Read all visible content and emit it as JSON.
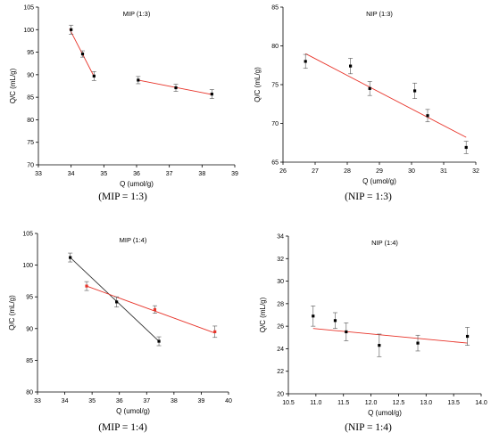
{
  "chart_data": [
    {
      "type": "scatter",
      "title": "MIP (1:3)",
      "caption": "(MIP = 1:3)",
      "xlabel": "Q (umol/g)",
      "ylabel": "Q/C (mL/g)",
      "xlim": [
        33,
        39
      ],
      "ylim": [
        70,
        105
      ],
      "xticks": [
        33,
        34,
        35,
        36,
        37,
        38,
        39
      ],
      "yticks": [
        70,
        75,
        80,
        85,
        90,
        95,
        100,
        105
      ],
      "grid": false,
      "series": [
        {
          "points": [
            [
              34.0,
              100.0
            ],
            [
              34.35,
              94.6
            ],
            [
              34.7,
              89.7
            ],
            [
              36.05,
              88.8
            ],
            [
              37.2,
              87.1
            ],
            [
              38.3,
              85.7
            ]
          ],
          "errors": [
            1.0,
            0.7,
            1.0,
            0.8,
            0.8,
            1.0
          ]
        }
      ],
      "fits": [
        {
          "color": "#e8342a",
          "from": [
            33.95,
            100.2
          ],
          "to": [
            34.7,
            89.6
          ]
        },
        {
          "color": "#e8342a",
          "from": [
            36.05,
            88.8
          ],
          "to": [
            38.3,
            85.6
          ]
        }
      ]
    },
    {
      "type": "scatter",
      "title": "NIP (1:3)",
      "caption": "(NIP = 1:3)",
      "xlabel": "Q (umol/g)",
      "ylabel": "Q/C (mL/g)",
      "xlim": [
        26,
        32
      ],
      "ylim": [
        65,
        85
      ],
      "xticks": [
        26,
        27,
        28,
        29,
        30,
        31,
        32
      ],
      "yticks": [
        65,
        70,
        75,
        80,
        85
      ],
      "grid": false,
      "series": [
        {
          "points": [
            [
              26.7,
              78.0
            ],
            [
              28.1,
              77.4
            ],
            [
              28.7,
              74.5
            ],
            [
              30.1,
              74.2
            ],
            [
              30.5,
              71.0
            ],
            [
              31.7,
              66.9
            ]
          ],
          "errors": [
            0.9,
            1.0,
            0.9,
            1.0,
            0.8,
            0.8
          ]
        }
      ],
      "fits": [
        {
          "color": "#e8342a",
          "from": [
            26.7,
            79.0
          ],
          "to": [
            31.7,
            68.2
          ]
        }
      ]
    },
    {
      "type": "scatter",
      "title": "MIP (1:4)",
      "caption": "(MIP = 1:4)",
      "xlabel": "Q (umol/g)",
      "ylabel": "Q/C (mL/g)",
      "xlim": [
        33,
        40
      ],
      "ylim": [
        80,
        105
      ],
      "xticks": [
        33,
        34,
        35,
        36,
        37,
        38,
        39,
        40
      ],
      "yticks": [
        80,
        85,
        90,
        95,
        100,
        105
      ],
      "grid": false,
      "series": [
        {
          "color": "#000000",
          "points": [
            [
              34.2,
              101.2
            ],
            [
              35.9,
              94.2
            ],
            [
              37.45,
              88.0
            ]
          ],
          "errors": [
            0.7,
            0.8,
            0.7
          ]
        },
        {
          "color": "#e8342a",
          "points": [
            [
              34.8,
              96.7
            ],
            [
              37.3,
              93.0
            ],
            [
              39.5,
              89.5
            ]
          ],
          "errors": [
            0.7,
            0.6,
            0.9
          ]
        }
      ],
      "fits": [
        {
          "color": "#333333",
          "from": [
            34.2,
            101.2
          ],
          "to": [
            37.45,
            88.0
          ]
        },
        {
          "color": "#e8342a",
          "from": [
            34.8,
            96.7
          ],
          "to": [
            39.5,
            89.3
          ]
        }
      ]
    },
    {
      "type": "scatter",
      "title": "NIP (1:4)",
      "caption": "(NIP = 1:4)",
      "xlabel": "Q (umol/g)",
      "ylabel": "Q/C (mL/g)",
      "xlim": [
        10.5,
        14.0
      ],
      "ylim": [
        20,
        34
      ],
      "xticks": [
        "10.5",
        "11.0",
        "11.5",
        "12.0",
        "12.5",
        "13.0",
        "13.5",
        "14.0"
      ],
      "yticks": [
        20,
        22,
        24,
        26,
        28,
        30,
        32,
        34
      ],
      "grid": false,
      "series": [
        {
          "points": [
            [
              10.95,
              26.9
            ],
            [
              11.35,
              26.5
            ],
            [
              11.55,
              25.5
            ],
            [
              12.15,
              24.3
            ],
            [
              12.85,
              24.5
            ],
            [
              13.75,
              25.1
            ]
          ],
          "errors": [
            0.9,
            0.7,
            0.8,
            1.0,
            0.7,
            0.8
          ]
        }
      ],
      "fits": [
        {
          "color": "#e8342a",
          "from": [
            10.95,
            25.8
          ],
          "to": [
            13.75,
            24.5
          ]
        }
      ]
    }
  ]
}
